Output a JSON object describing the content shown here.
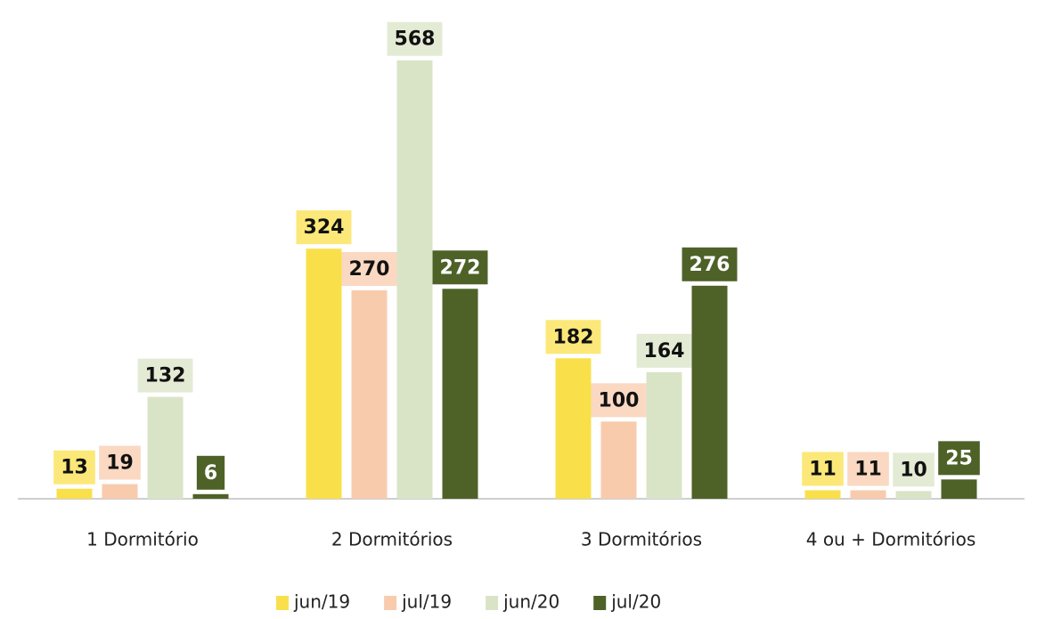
{
  "chart_data": {
    "type": "bar",
    "categories": [
      "1 Dormitório",
      "2 Dormitórios",
      "3 Dormitórios",
      "4 ou + Dormitórios"
    ],
    "series": [
      {
        "name": "jun/19",
        "color": "#f9e04b",
        "values": [
          13,
          324,
          182,
          11
        ]
      },
      {
        "name": "jul/19",
        "color": "#f8cbad",
        "values": [
          19,
          270,
          100,
          11
        ]
      },
      {
        "name": "jun/20",
        "color": "#d9e4c7",
        "values": [
          132,
          568,
          164,
          10
        ]
      },
      {
        "name": "jul/20",
        "color": "#4e6228",
        "values": [
          6,
          272,
          276,
          25
        ]
      }
    ],
    "ylim": [
      0,
      600
    ],
    "legend": "bottom"
  }
}
